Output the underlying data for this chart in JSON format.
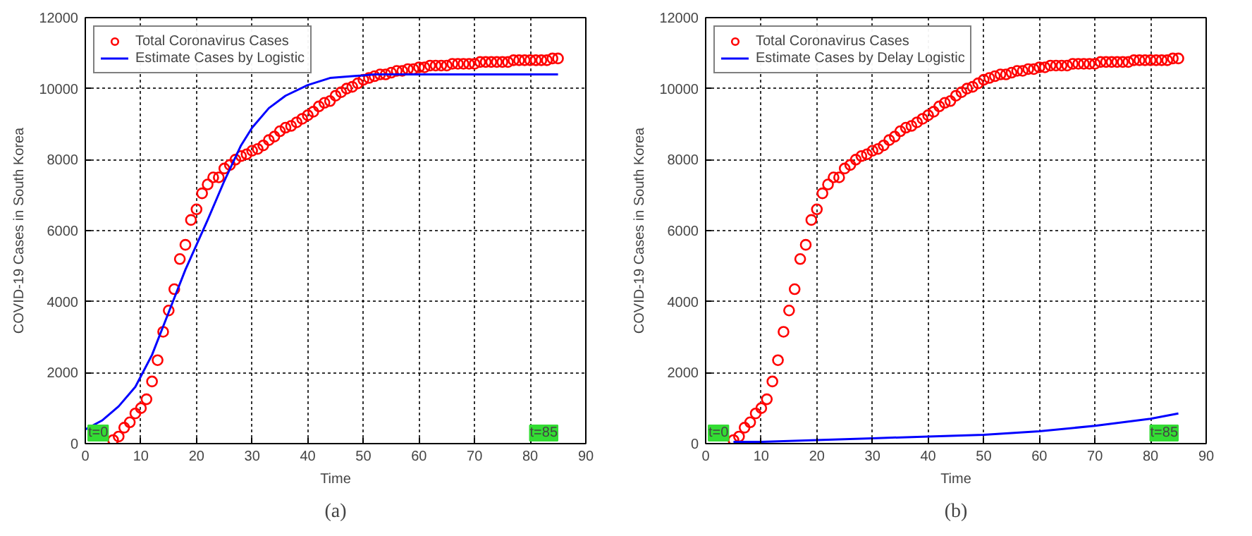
{
  "chart_data": [
    {
      "type": "scatter",
      "xlabel": "Time",
      "ylabel": "COVID-19 Cases in South Korea",
      "xlim": [
        0,
        90
      ],
      "ylim": [
        0,
        12000
      ],
      "xticks": [
        0,
        10,
        20,
        30,
        40,
        50,
        60,
        70,
        80,
        90
      ],
      "yticks": [
        0,
        2000,
        4000,
        6000,
        8000,
        10000,
        12000
      ],
      "grid": true,
      "legend": "top left",
      "annotations": [
        "t=0",
        "t=85",
        "(a)"
      ],
      "series": [
        {
          "name": "Total Coronavirus Cases",
          "marker": "circle",
          "color": "#ff0000",
          "x": [
            5,
            6,
            7,
            8,
            9,
            10,
            11,
            12,
            13,
            14,
            15,
            16,
            17,
            18,
            19,
            20,
            21,
            22,
            23,
            24,
            25,
            26,
            27,
            28,
            29,
            30,
            31,
            32,
            33,
            34,
            35,
            36,
            37,
            38,
            39,
            40,
            41,
            42,
            43,
            44,
            45,
            46,
            47,
            48,
            49,
            50,
            51,
            52,
            53,
            54,
            55,
            56,
            57,
            58,
            59,
            60,
            61,
            62,
            63,
            64,
            65,
            66,
            67,
            68,
            69,
            70,
            71,
            72,
            73,
            74,
            75,
            76,
            77,
            78,
            79,
            80,
            81,
            82,
            83,
            84,
            85
          ],
          "values": [
            100,
            200,
            450,
            600,
            850,
            1000,
            1250,
            1750,
            2350,
            3150,
            3750,
            4350,
            5200,
            5600,
            6300,
            6600,
            7050,
            7300,
            7500,
            7500,
            7750,
            7850,
            8000,
            8100,
            8150,
            8250,
            8300,
            8400,
            8550,
            8650,
            8800,
            8900,
            8950,
            9050,
            9150,
            9250,
            9350,
            9500,
            9600,
            9650,
            9800,
            9900,
            10000,
            10050,
            10150,
            10250,
            10300,
            10350,
            10400,
            10400,
            10450,
            10500,
            10500,
            10550,
            10550,
            10600,
            10600,
            10650,
            10650,
            10650,
            10650,
            10700,
            10700,
            10700,
            10700,
            10700,
            10750,
            10750,
            10750,
            10750,
            10750,
            10750,
            10800,
            10800,
            10800,
            10800,
            10800,
            10800,
            10800,
            10850,
            10850
          ]
        },
        {
          "name": "Estimate Cases by Logistic",
          "type": "line",
          "color": "#0000ff",
          "x": [
            0,
            3,
            6,
            9,
            12,
            15,
            18,
            20,
            22,
            25,
            28,
            30,
            33,
            36,
            40,
            44,
            48,
            52,
            56,
            60,
            70,
            85
          ],
          "values": [
            400,
            650,
            1050,
            1600,
            2500,
            3700,
            4900,
            5600,
            6300,
            7400,
            8400,
            8900,
            9450,
            9800,
            10100,
            10300,
            10350,
            10400,
            10400,
            10400,
            10400,
            10400
          ]
        }
      ]
    },
    {
      "type": "scatter",
      "xlabel": "Time",
      "ylabel": "COVID-19 Cases in South Korea",
      "xlim": [
        0,
        90
      ],
      "ylim": [
        0,
        12000
      ],
      "xticks": [
        0,
        10,
        20,
        30,
        40,
        50,
        60,
        70,
        80,
        90
      ],
      "yticks": [
        0,
        2000,
        4000,
        6000,
        8000,
        10000,
        12000
      ],
      "grid": true,
      "legend": "top left",
      "annotations": [
        "t=0",
        "t=85",
        "(b)"
      ],
      "series": [
        {
          "name": "Total Coronavirus Cases",
          "marker": "circle",
          "color": "#ff0000",
          "x": [
            5,
            6,
            7,
            8,
            9,
            10,
            11,
            12,
            13,
            14,
            15,
            16,
            17,
            18,
            19,
            20,
            21,
            22,
            23,
            24,
            25,
            26,
            27,
            28,
            29,
            30,
            31,
            32,
            33,
            34,
            35,
            36,
            37,
            38,
            39,
            40,
            41,
            42,
            43,
            44,
            45,
            46,
            47,
            48,
            49,
            50,
            51,
            52,
            53,
            54,
            55,
            56,
            57,
            58,
            59,
            60,
            61,
            62,
            63,
            64,
            65,
            66,
            67,
            68,
            69,
            70,
            71,
            72,
            73,
            74,
            75,
            76,
            77,
            78,
            79,
            80,
            81,
            82,
            83,
            84,
            85
          ],
          "values": [
            100,
            200,
            450,
            600,
            850,
            1000,
            1250,
            1750,
            2350,
            3150,
            3750,
            4350,
            5200,
            5600,
            6300,
            6600,
            7050,
            7300,
            7500,
            7500,
            7750,
            7850,
            8000,
            8100,
            8150,
            8250,
            8300,
            8400,
            8550,
            8650,
            8800,
            8900,
            8950,
            9050,
            9150,
            9250,
            9350,
            9500,
            9600,
            9650,
            9800,
            9900,
            10000,
            10050,
            10150,
            10250,
            10300,
            10350,
            10400,
            10400,
            10450,
            10500,
            10500,
            10550,
            10550,
            10600,
            10600,
            10650,
            10650,
            10650,
            10650,
            10700,
            10700,
            10700,
            10700,
            10700,
            10750,
            10750,
            10750,
            10750,
            10750,
            10750,
            10800,
            10800,
            10800,
            10800,
            10800,
            10800,
            10800,
            10850,
            10850
          ]
        },
        {
          "name": "Estimate Cases by Delay Logistic",
          "type": "line",
          "color": "#0000ff",
          "x": [
            5,
            10,
            20,
            30,
            40,
            50,
            60,
            70,
            80,
            85
          ],
          "values": [
            50,
            50,
            100,
            150,
            200,
            250,
            350,
            500,
            700,
            850
          ]
        }
      ]
    }
  ]
}
